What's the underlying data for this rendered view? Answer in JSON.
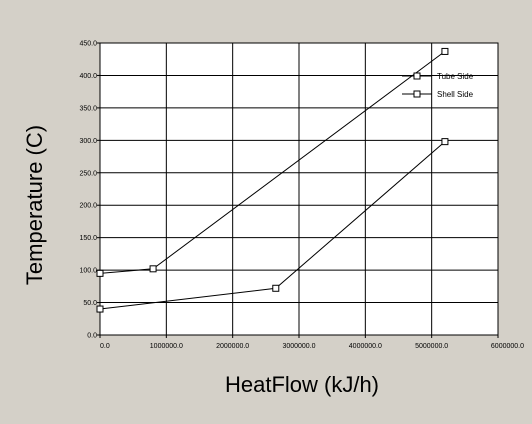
{
  "chart_data": {
    "type": "line",
    "xlabel": "HeatFlow (kJ/h)",
    "ylabel": "Temperature (C)",
    "xlim": [
      0,
      6000000
    ],
    "ylim": [
      0,
      450
    ],
    "x_ticks": [
      0,
      1000000,
      2000000,
      3000000,
      4000000,
      5000000,
      6000000
    ],
    "x_tick_labels": [
      "0.0",
      "1000000.0",
      "2000000.0",
      "3000000.0",
      "4000000.0",
      "5000000.0",
      "6000000.0"
    ],
    "y_ticks": [
      0,
      50,
      100,
      150,
      200,
      250,
      300,
      350,
      400,
      450
    ],
    "y_tick_labels": [
      "0.0",
      "50.0",
      "100.0",
      "150.0",
      "200.0",
      "250.0",
      "300.0",
      "350.0",
      "400.0",
      "450.0"
    ],
    "grid": true,
    "legend_position": "top-right",
    "series": [
      {
        "name": "Tube Side",
        "x": [
          0,
          2650000,
          5200000
        ],
        "y": [
          40,
          72,
          298
        ]
      },
      {
        "name": "Shell Side",
        "x": [
          0,
          800000,
          5200000
        ],
        "y": [
          95,
          102,
          437
        ]
      }
    ]
  }
}
